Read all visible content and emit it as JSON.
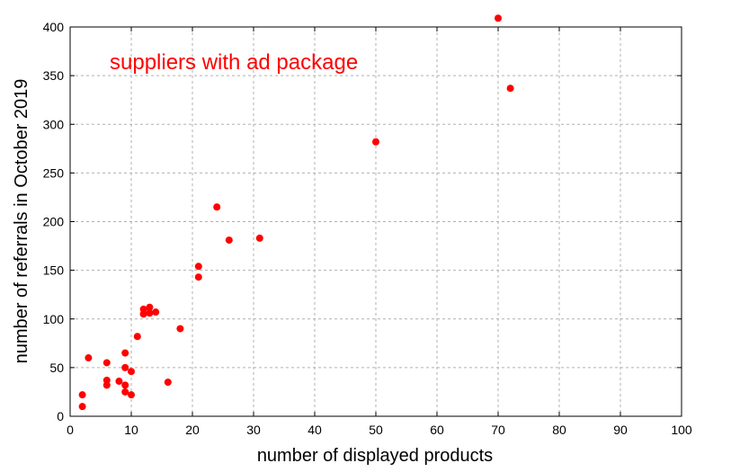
{
  "chart_data": {
    "type": "scatter",
    "title": "",
    "annotation": "suppliers with ad package",
    "xlabel": "number of displayed products",
    "ylabel": "number of referrals in October 2019",
    "xlim": [
      0,
      100
    ],
    "ylim": [
      0,
      400
    ],
    "xticks": [
      0,
      10,
      20,
      30,
      40,
      50,
      60,
      70,
      80,
      90,
      100
    ],
    "yticks": [
      0,
      50,
      100,
      150,
      200,
      250,
      300,
      350,
      400
    ],
    "grid": true,
    "legend": "none",
    "series": [
      {
        "color": "#ff0000",
        "points": [
          [
            2,
            10
          ],
          [
            2,
            22
          ],
          [
            3,
            60
          ],
          [
            6,
            32
          ],
          [
            6,
            37
          ],
          [
            6,
            55
          ],
          [
            8,
            36
          ],
          [
            9,
            25
          ],
          [
            9,
            32
          ],
          [
            9,
            50
          ],
          [
            9,
            65
          ],
          [
            10,
            22
          ],
          [
            10,
            46
          ],
          [
            11,
            82
          ],
          [
            12,
            105
          ],
          [
            12,
            110
          ],
          [
            13,
            106
          ],
          [
            13,
            112
          ],
          [
            14,
            107
          ],
          [
            16,
            35
          ],
          [
            18,
            90
          ],
          [
            21,
            143
          ],
          [
            21,
            154
          ],
          [
            24,
            215
          ],
          [
            26,
            181
          ],
          [
            31,
            183
          ],
          [
            50,
            282
          ],
          [
            70,
            409
          ],
          [
            72,
            337
          ]
        ]
      }
    ]
  },
  "colors": {
    "marker": "#ff0000",
    "annotation": "#ff0000",
    "grid": "#b0b0b0",
    "axis": "#000000"
  }
}
